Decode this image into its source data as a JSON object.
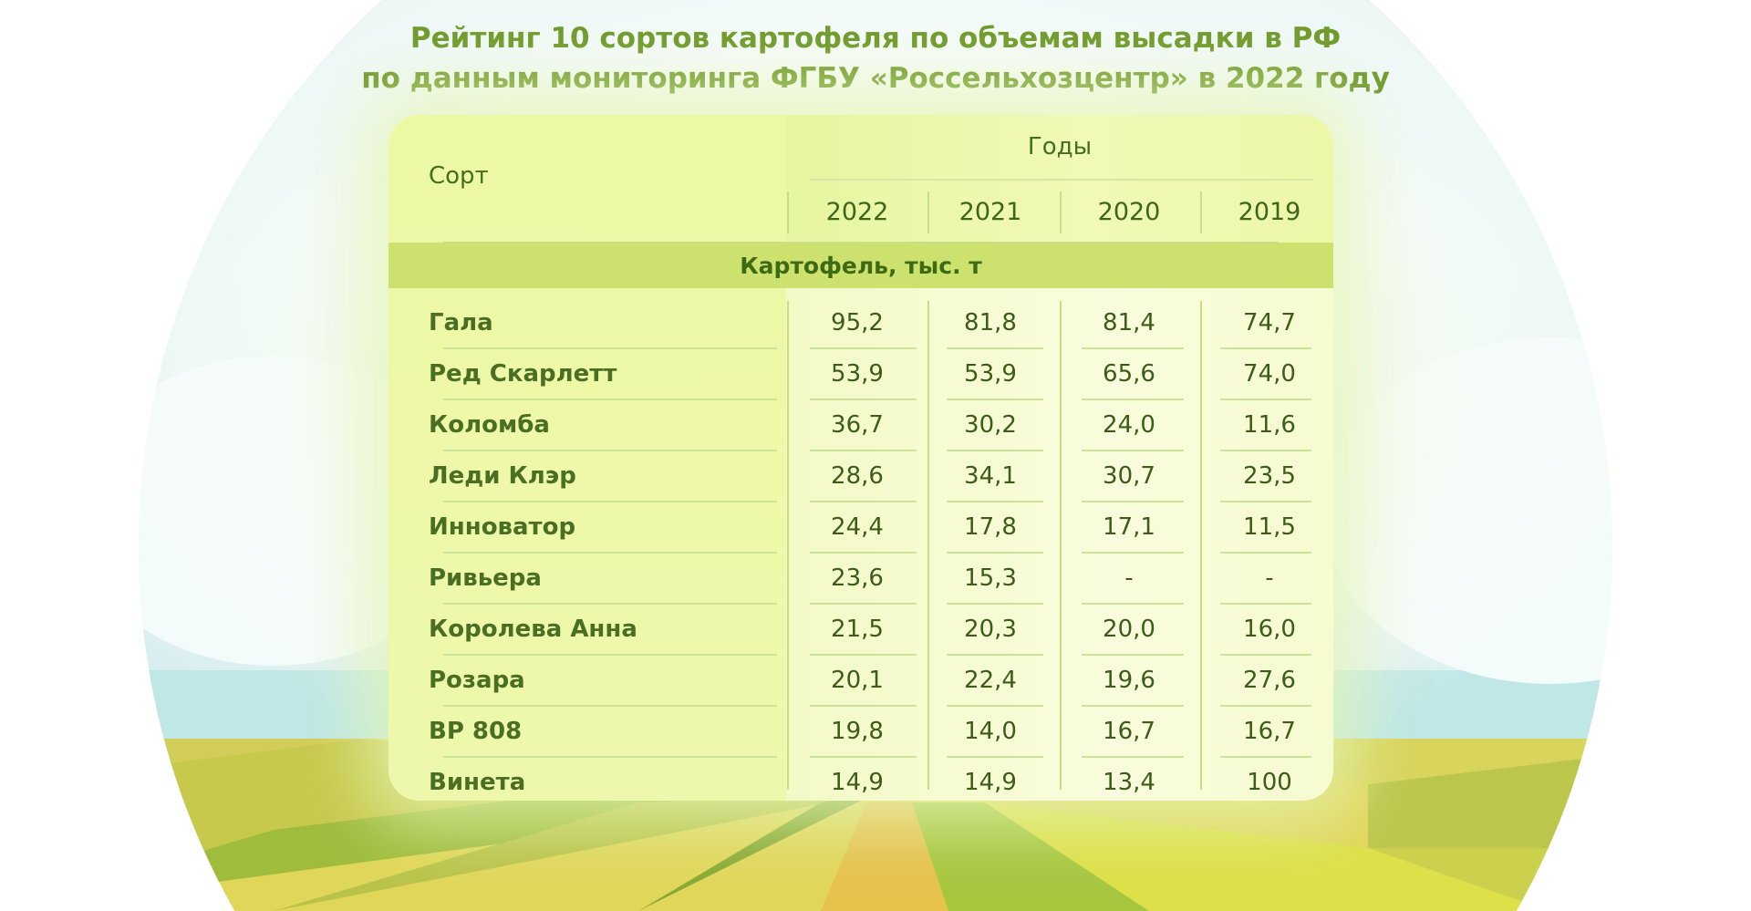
{
  "title_line1": "Рейтинг 10 сортов картофеля по объемам высадки в РФ",
  "title_line2": "по данным мониторинга ФГБУ «Россельхозцентр» в 2022 году",
  "chart_data": {
    "type": "table",
    "row_header": "Сорт",
    "column_group_label": "Годы",
    "columns": [
      "2022",
      "2021",
      "2020",
      "2019"
    ],
    "section_label": "Картофель, тыс. т",
    "rows": [
      {
        "name": "Гала",
        "values": [
          "95,2",
          "81,8",
          "81,4",
          "74,7"
        ]
      },
      {
        "name": "Ред Скарлетт",
        "values": [
          "53,9",
          "53,9",
          "65,6",
          "74,0"
        ]
      },
      {
        "name": "Коломба",
        "values": [
          "36,7",
          "30,2",
          "24,0",
          "11,6"
        ]
      },
      {
        "name": "Леди Клэр",
        "values": [
          "28,6",
          "34,1",
          "30,7",
          "23,5"
        ]
      },
      {
        "name": "Инноватор",
        "values": [
          "24,4",
          "17,8",
          "17,1",
          "11,5"
        ]
      },
      {
        "name": "Ривьера",
        "values": [
          "23,6",
          "15,3",
          "-",
          "-"
        ]
      },
      {
        "name": "Королева Анна",
        "values": [
          "21,5",
          "20,3",
          "20,0",
          "16,0"
        ]
      },
      {
        "name": "Розара",
        "values": [
          "20,1",
          "22,4",
          "19,6",
          "27,6"
        ]
      },
      {
        "name": "BP 808",
        "values": [
          "19,8",
          "14,0",
          "16,7",
          "16,7"
        ]
      },
      {
        "name": "Винета",
        "values": [
          "14,9",
          "14,9",
          "13,4",
          "100"
        ]
      }
    ]
  },
  "colors": {
    "title": "#6f9a2b",
    "section_bar": "#cde26e",
    "text": "#3c5c18"
  }
}
